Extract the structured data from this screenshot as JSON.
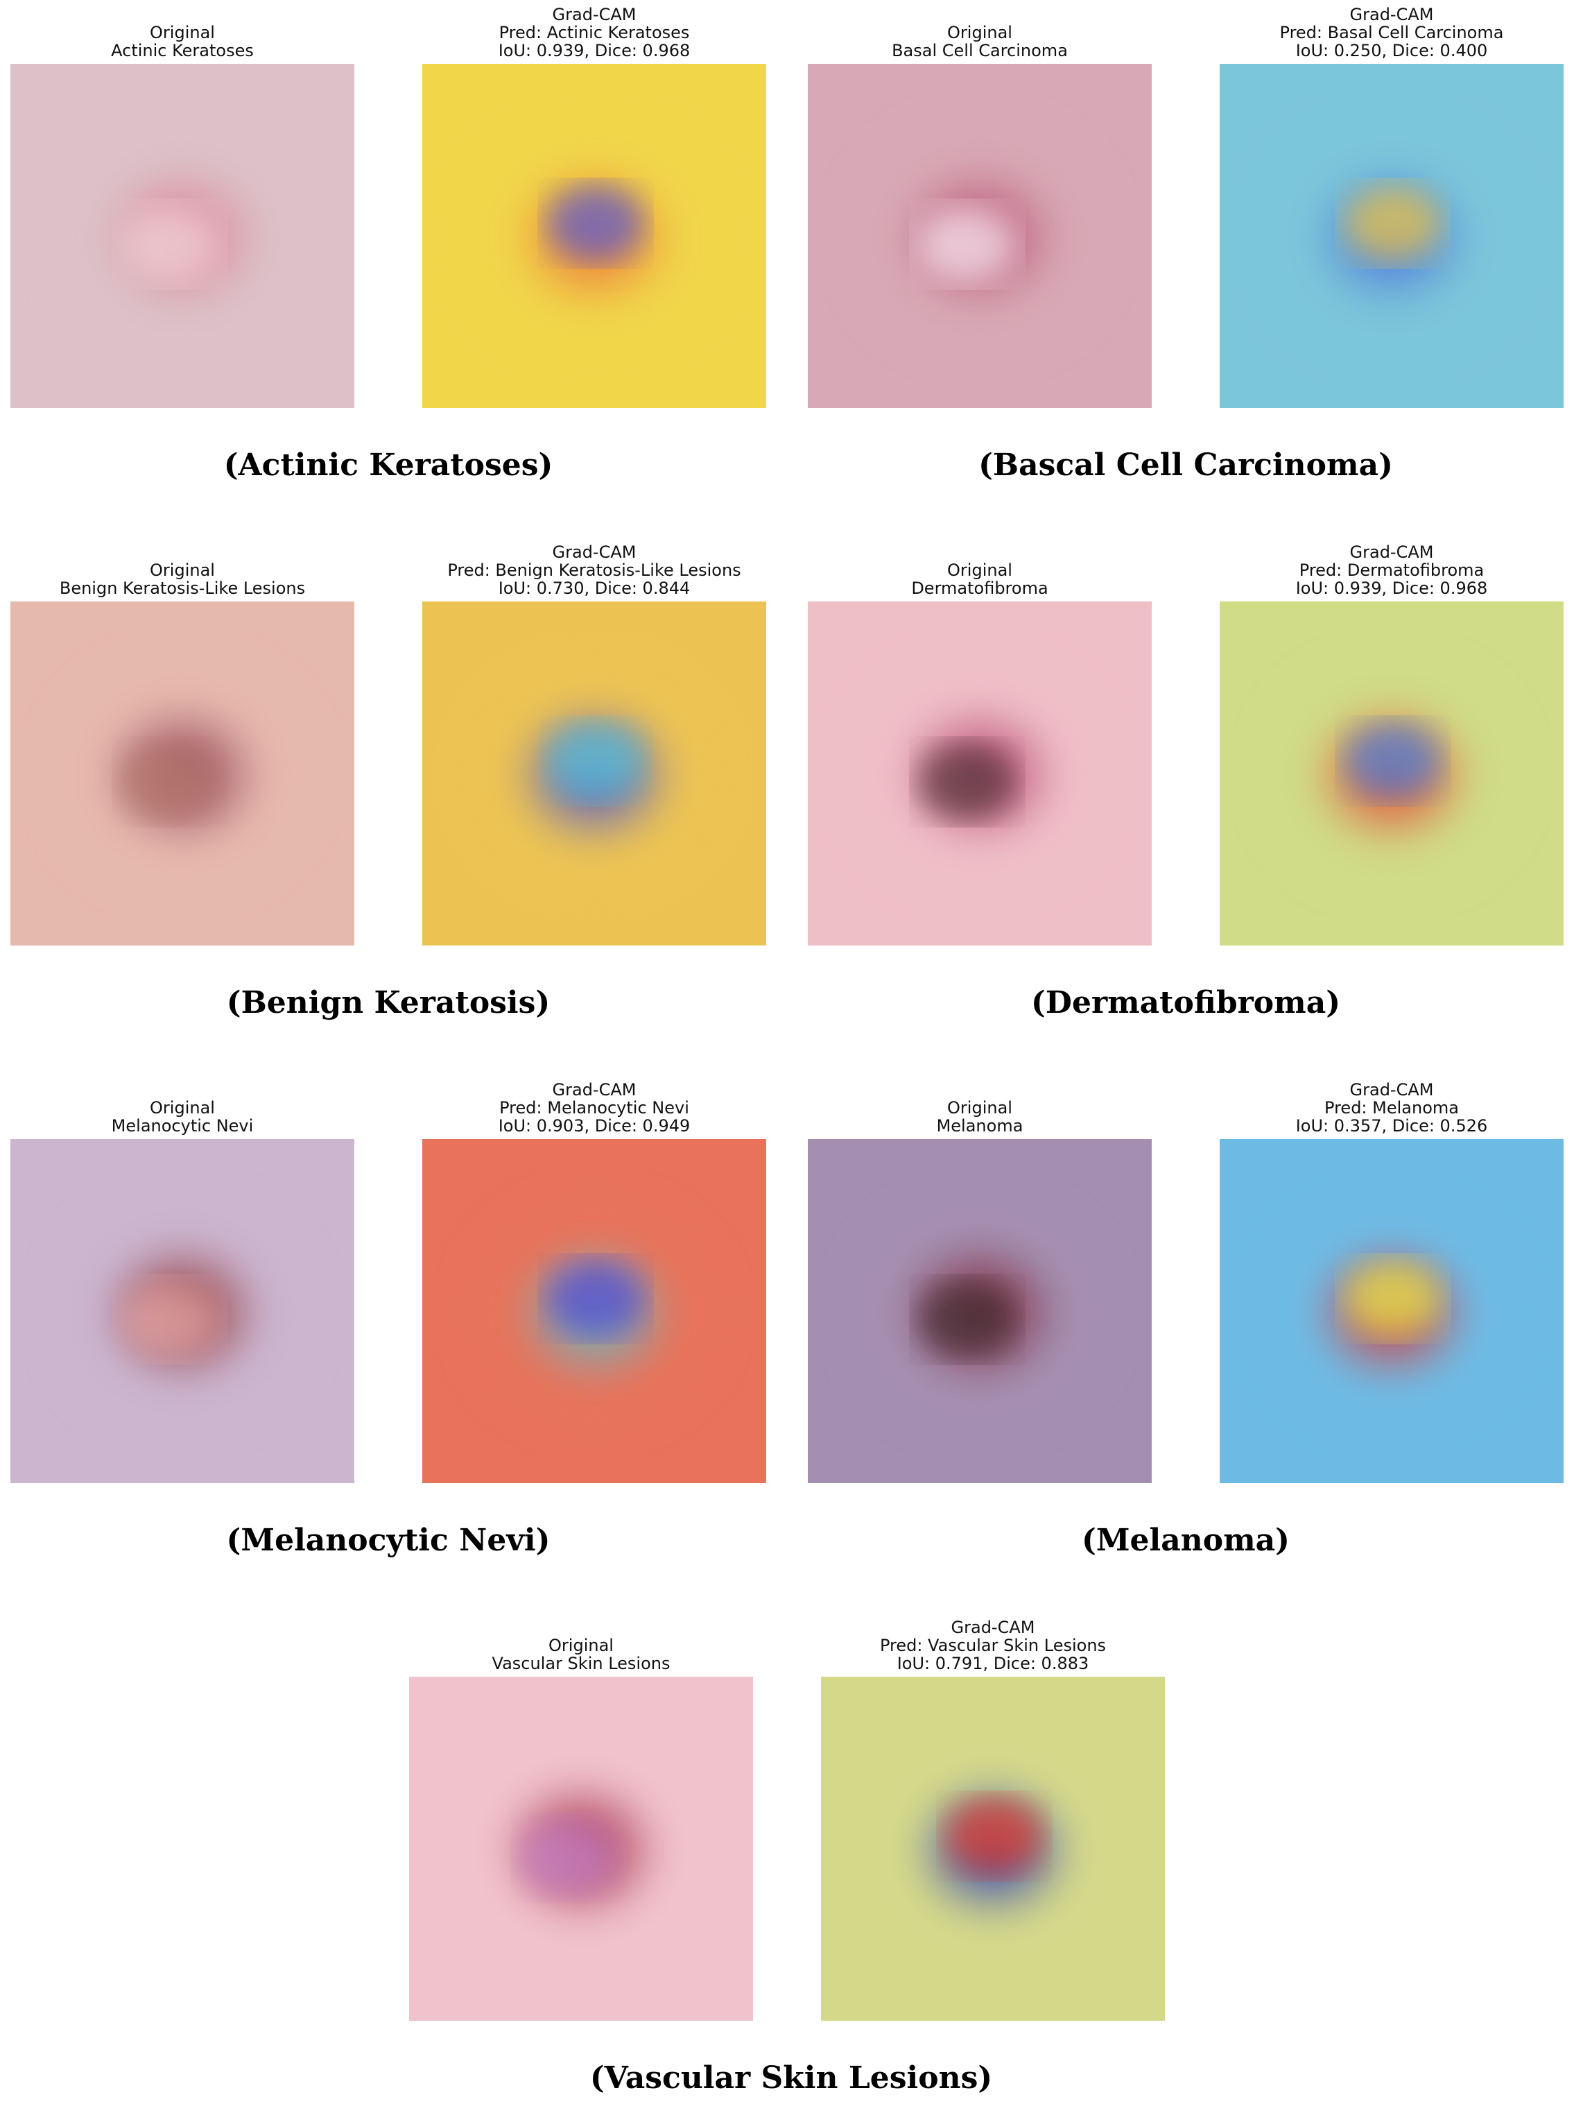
{
  "figure": {
    "panels": [
      {
        "id": "ak-orig",
        "lines": [
          "Original",
          "Actinic Keratoses"
        ],
        "kind": "orig",
        "base": "#dcc1c8",
        "spot": "#dd7f93",
        "spot2": "#f0d2d6"
      },
      {
        "id": "ak-cam",
        "lines": [
          "Grad-CAM",
          "Pred: Actinic Keratoses",
          "IoU: 0.939, Dice: 0.968"
        ],
        "kind": "cam",
        "base": "#f1d64a",
        "spot": "#ec6a3c",
        "spot2": "#5e63c9"
      },
      {
        "id": "bcc-orig",
        "lines": [
          "Original",
          "Basal Cell Carcinoma"
        ],
        "kind": "orig",
        "base": "#d7a8b5",
        "spot": "#b84d6e",
        "spot2": "#f6e4ee"
      },
      {
        "id": "bcc-cam",
        "lines": [
          "Grad-CAM",
          "Pred: Basal Cell Carcinoma",
          "IoU: 0.250, Dice: 0.400"
        ],
        "kind": "cam",
        "base": "#7cc6d9",
        "spot": "#4a6fd9",
        "spot2": "#e9c54a"
      },
      {
        "id": "bk-orig",
        "lines": [
          "Original",
          "Benign Keratosis-Like Lesions"
        ],
        "kind": "orig",
        "base": "#e6b9ad",
        "spot": "#8e3a55",
        "spot2": "#b47a6c"
      },
      {
        "id": "bk-cam",
        "lines": [
          "Grad-CAM",
          "Pred: Benign Keratosis-Like Lesions",
          "IoU: 0.730, Dice: 0.844"
        ],
        "kind": "cam",
        "base": "#ecc353",
        "spot": "#3c4fd1",
        "spot2": "#5cc1d2"
      },
      {
        "id": "df-orig",
        "lines": [
          "Original",
          "Dermatofibroma"
        ],
        "kind": "orig",
        "base": "#efbfc7",
        "spot": "#b2396a",
        "spot2": "#5a3a3f"
      },
      {
        "id": "df-cam",
        "lines": [
          "Grad-CAM",
          "Pred: Dermatofibroma",
          "IoU: 0.939, Dice: 0.968"
        ],
        "kind": "cam",
        "base": "#d0dc86",
        "spot": "#e2372c",
        "spot2": "#4e83d7"
      },
      {
        "id": "mn-orig",
        "lines": [
          "Original",
          "Melanocytic Nevi"
        ],
        "kind": "orig",
        "base": "#cbb5cf",
        "spot": "#8d2a2a",
        "spot2": "#e4a7a7"
      },
      {
        "id": "mn-cam",
        "lines": [
          "Grad-CAM",
          "Pred: Melanocytic Nevi",
          "IoU: 0.903, Dice: 0.949"
        ],
        "kind": "cam",
        "base": "#e8735a",
        "spot": "#59b9c8",
        "spot2": "#5a4bcf"
      },
      {
        "id": "mel-orig",
        "lines": [
          "Original",
          "Melanoma"
        ],
        "kind": "orig",
        "base": "#a58fb1",
        "spot": "#7b1d2c",
        "spot2": "#453038"
      },
      {
        "id": "mel-cam",
        "lines": [
          "Grad-CAM",
          "Pred: Melanoma",
          "IoU: 0.357, Dice: 0.526"
        ],
        "kind": "cam",
        "base": "#6dbbe5",
        "spot": "#d8312c",
        "spot2": "#e2e54e"
      },
      {
        "id": "vsl-orig",
        "lines": [
          "Original",
          "Vascular Skin Lesions"
        ],
        "kind": "orig",
        "base": "#f0c2cc",
        "spot": "#9e1b3a",
        "spot2": "#c684c8"
      },
      {
        "id": "vsl-cam",
        "lines": [
          "Grad-CAM",
          "Pred: Vascular Skin Lesions",
          "IoU: 0.791, Dice: 0.883"
        ],
        "kind": "cam",
        "base": "#d4d98a",
        "spot": "#1f2fb4",
        "spot2": "#e1402c"
      }
    ],
    "row_labels": [
      "(Actinic Keratoses)",
      "(Bascal Cell Carcinoma)",
      "(Benign Keratosis)",
      "(Dermatofibroma)",
      "(Melanocytic Nevi)",
      "(Melanoma)",
      "(Vascular Skin Lesions)"
    ]
  }
}
